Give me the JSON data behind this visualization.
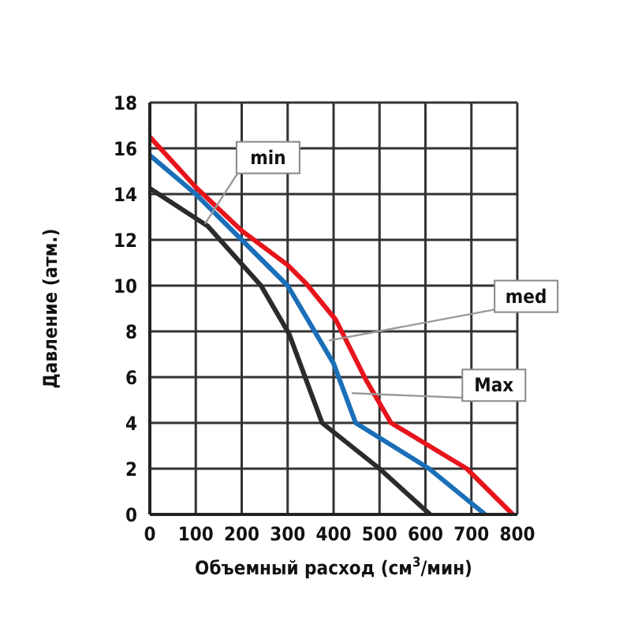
{
  "chart_data": {
    "type": "line",
    "xlabel": "Объемный расход (см$^{3}$/мин)",
    "ylabel": "Давление (атм.)",
    "series": [
      {
        "color": "#e8141c",
        "x": [
          0,
          100,
          200,
          300,
          340,
          405,
          470,
          525,
          690,
          790
        ],
        "values": [
          16.5,
          14.3,
          12.4,
          10.9,
          10.1,
          8.5,
          5.9,
          4.0,
          2.0,
          0
        ]
      },
      {
        "color": "#1a6fb8",
        "x": [
          0,
          100,
          200,
          300,
          400,
          448,
          608,
          730
        ],
        "values": [
          15.7,
          14.0,
          12.0,
          10.0,
          6.6,
          4.0,
          2.0,
          0
        ]
      },
      {
        "color": "#2b2b2b",
        "x": [
          0,
          126,
          242,
          303,
          375,
          500,
          610
        ],
        "values": [
          14.25,
          12.6,
          10.0,
          7.9,
          4.0,
          2.0,
          0
        ]
      }
    ],
    "annotations": [
      {
        "text": "min",
        "x": 120,
        "y": 12.7
      },
      {
        "text": "med",
        "x": 390,
        "y": 7.6
      },
      {
        "text": "Max",
        "x": 440,
        "y": 5.3
      }
    ],
    "xlim": [
      0,
      800
    ],
    "xticks": [
      0,
      100,
      200,
      300,
      400,
      500,
      600,
      700,
      800
    ],
    "ylim": [
      0,
      18
    ],
    "yticks": [
      0,
      2,
      4,
      6,
      8,
      10,
      12,
      14,
      16,
      18
    ],
    "grid": true,
    "legend": false,
    "marker": "none",
    "line_style": "solid"
  }
}
